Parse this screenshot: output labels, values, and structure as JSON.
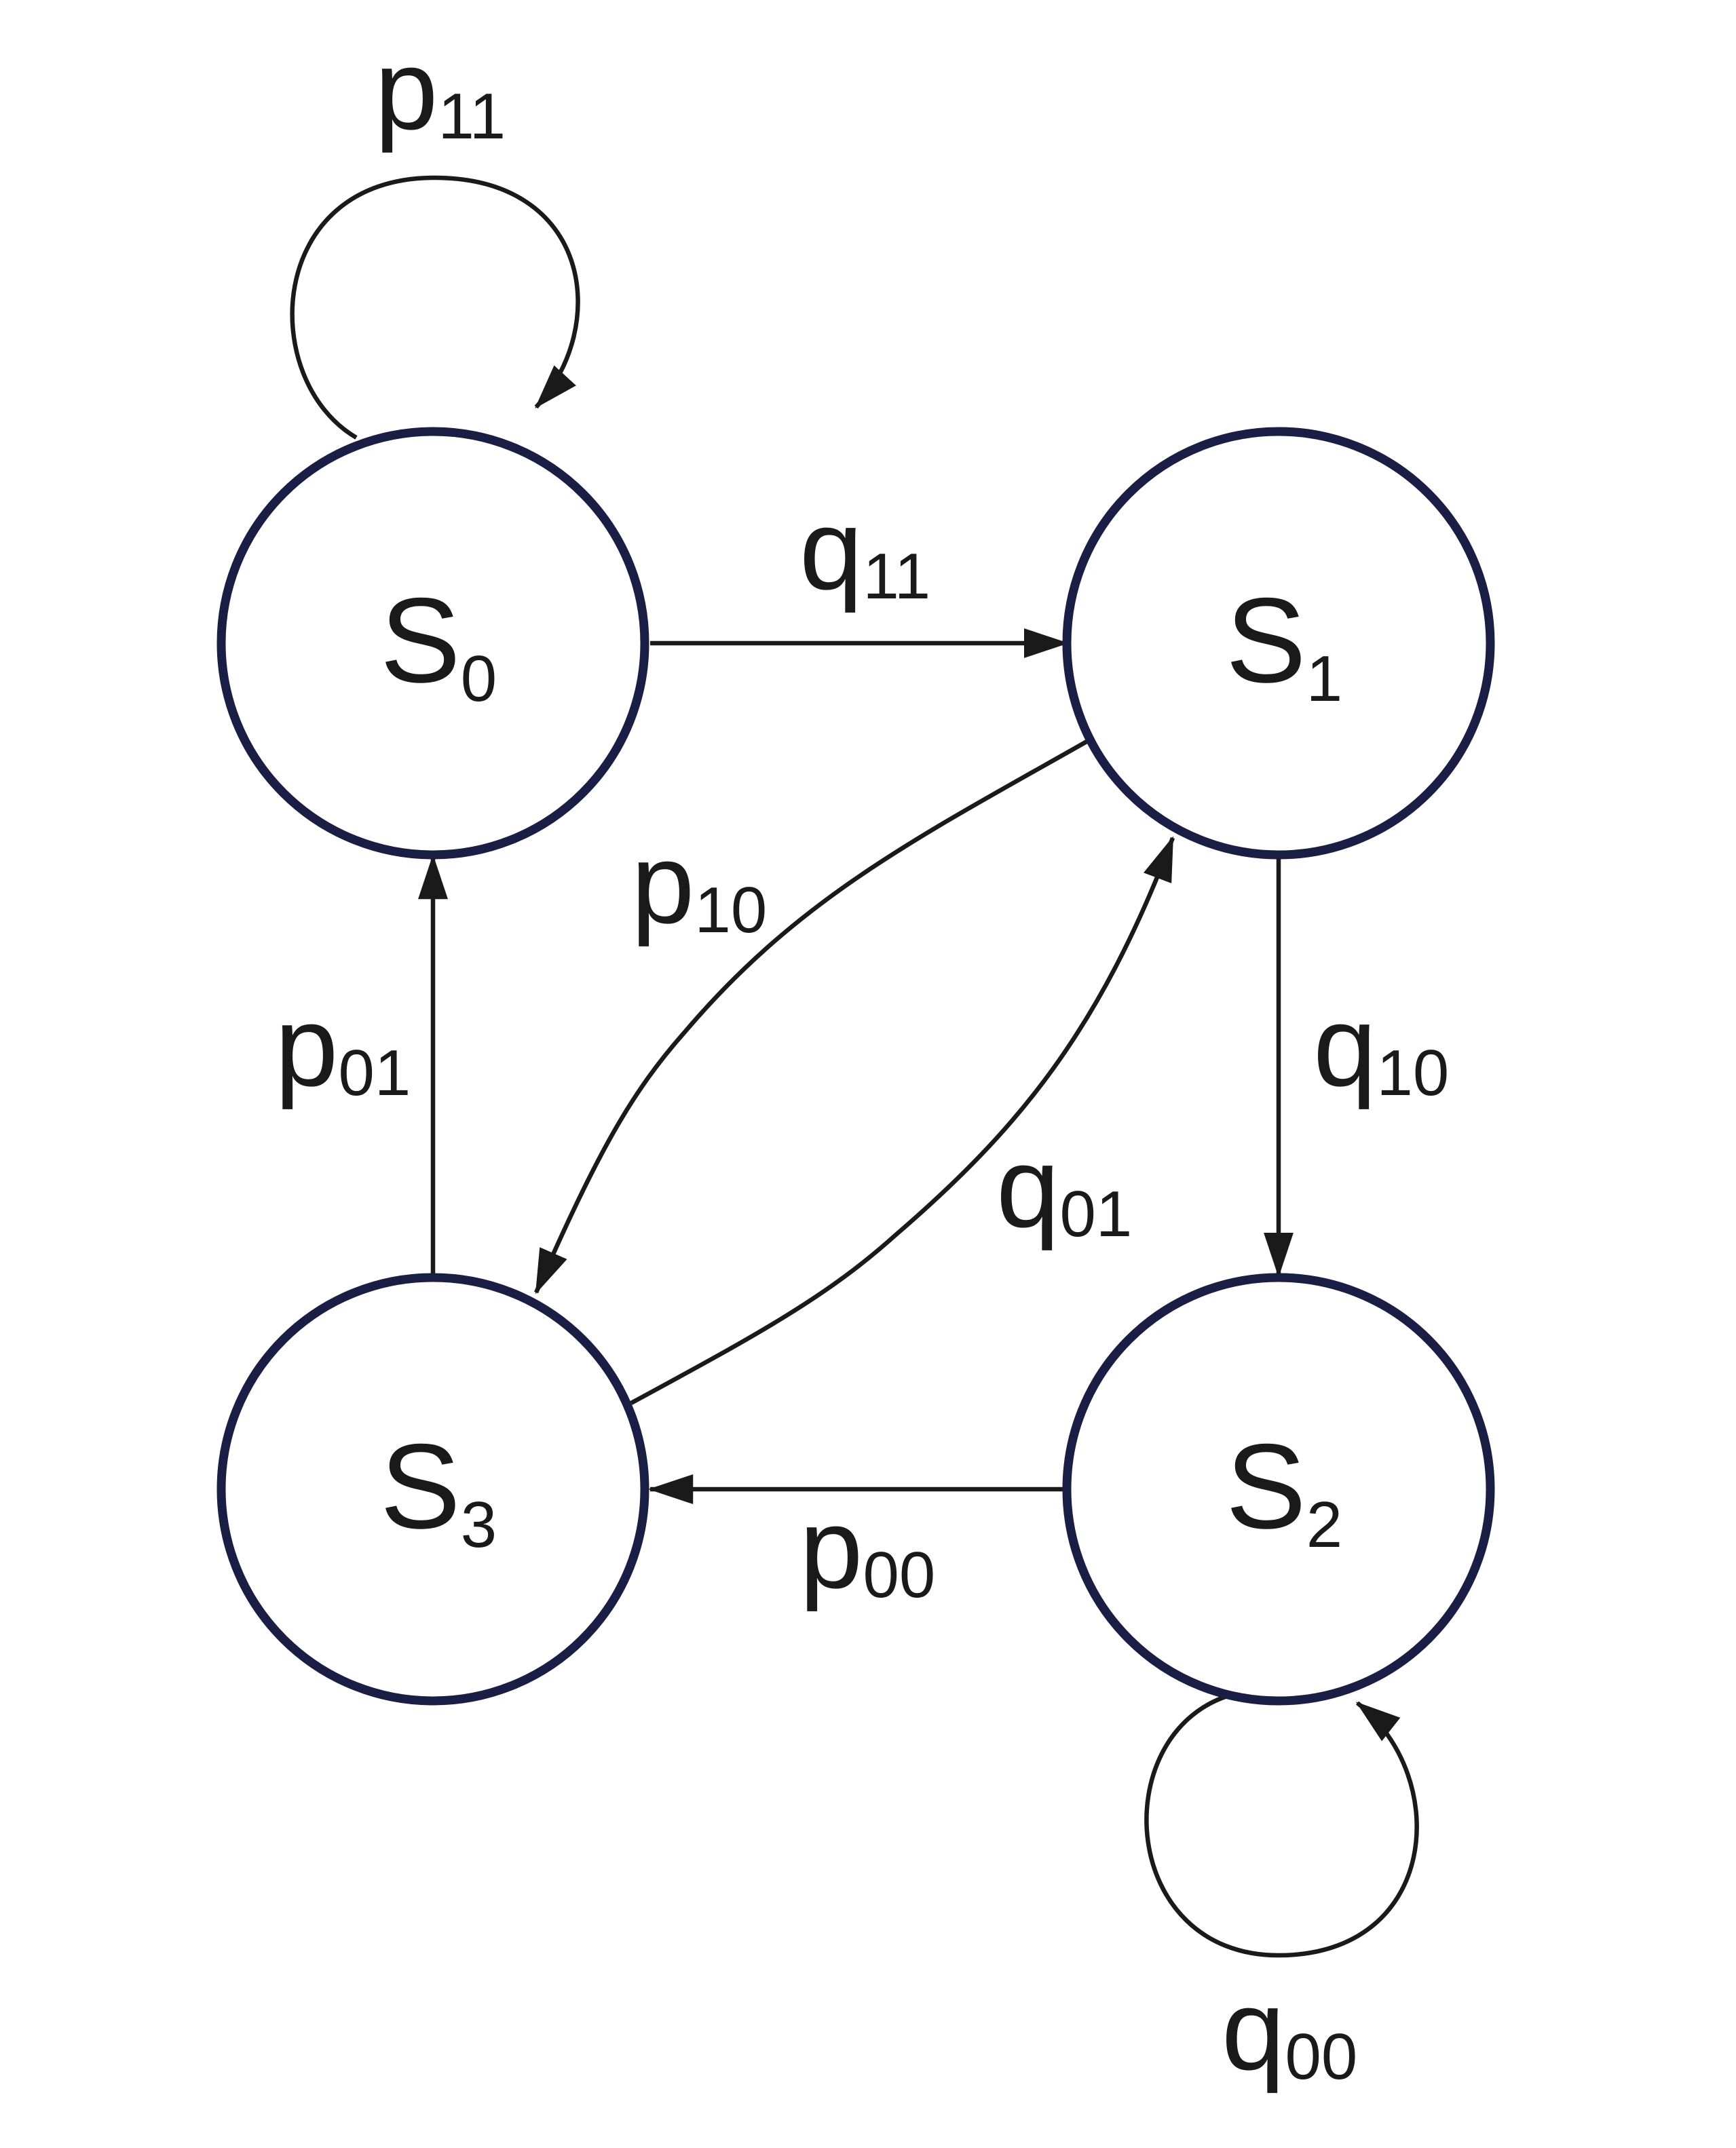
{
  "colors": {
    "state_stroke": "#1a1e45",
    "edge_stroke": "#1a1a1a",
    "text": "#1a1a1a",
    "background": "#ffffff"
  },
  "states": [
    {
      "id": "s0",
      "base": "S",
      "sub": "0"
    },
    {
      "id": "s1",
      "base": "S",
      "sub": "1"
    },
    {
      "id": "s2",
      "base": "S",
      "sub": "2"
    },
    {
      "id": "s3",
      "base": "S",
      "sub": "3"
    }
  ],
  "transitions": [
    {
      "id": "p11",
      "from": "S0",
      "to": "S0",
      "base": "p",
      "sub": "11"
    },
    {
      "id": "q11",
      "from": "S0",
      "to": "S1",
      "base": "q",
      "sub": "11"
    },
    {
      "id": "p10",
      "from": "S1",
      "to": "S3",
      "base": "p",
      "sub": "10"
    },
    {
      "id": "q10",
      "from": "S1",
      "to": "S2",
      "base": "q",
      "sub": "10"
    },
    {
      "id": "p01",
      "from": "S3",
      "to": "S0",
      "base": "p",
      "sub": "01"
    },
    {
      "id": "q01",
      "from": "S3",
      "to": "S1",
      "base": "q",
      "sub": "01"
    },
    {
      "id": "p00",
      "from": "S2",
      "to": "S3",
      "base": "p",
      "sub": "00"
    },
    {
      "id": "q00",
      "from": "S2",
      "to": "S2",
      "base": "q",
      "sub": "00"
    }
  ]
}
